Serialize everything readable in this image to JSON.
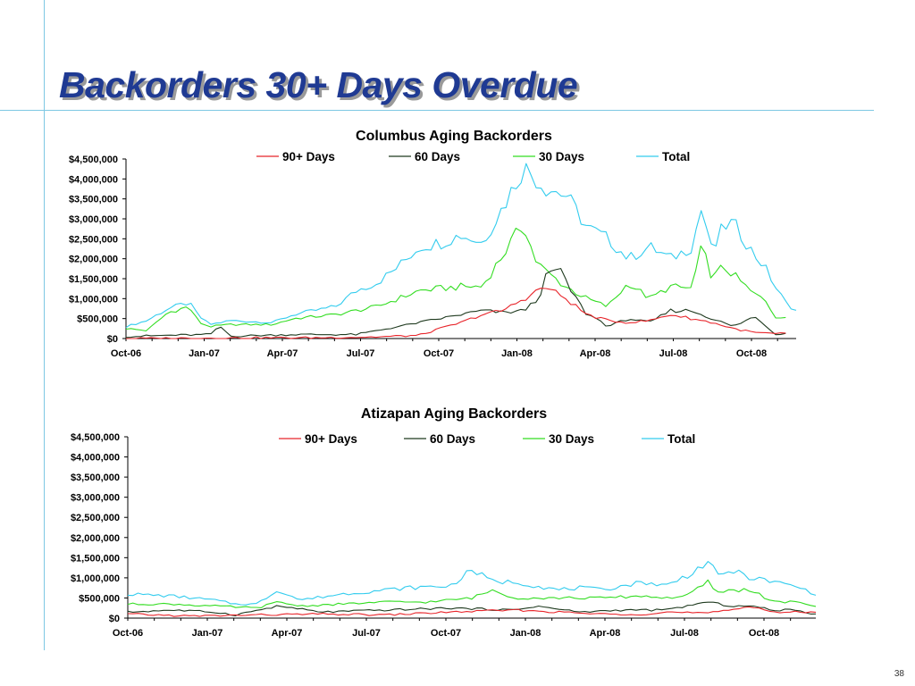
{
  "slide": {
    "title": "Backorders 30+ Days Overdue",
    "page_number": "38"
  },
  "colors": {
    "90+ Days": "#e8252b",
    "60 Days": "#1f3a1f",
    "30 Days": "#33dd22",
    "Total": "#33ccee"
  },
  "chart_data": [
    {
      "type": "line",
      "title": "Columbus Aging Backorders",
      "xlabel": "",
      "ylabel": "",
      "ylim": [
        0,
        4500000
      ],
      "yticks": [
        "$0",
        "$500,000",
        "$1,000,000",
        "$1,500,000",
        "$2,000,000",
        "$2,500,000",
        "$3,000,000",
        "$3,500,000",
        "$4,000,000",
        "$4,500,000"
      ],
      "xticks": [
        "Oct-06",
        "Jan-07",
        "Apr-07",
        "Jul-07",
        "Oct-07",
        "Jan-08",
        "Apr-08",
        "Jul-08",
        "Oct-08"
      ],
      "legend_position": "top",
      "series": [
        {
          "name": "90+ Days",
          "anchors": [
            [
              0,
              0
            ],
            [
              6,
              20000
            ],
            [
              9,
              20000
            ],
            [
              12,
              40000
            ],
            [
              14,
              80000
            ],
            [
              15,
              250000
            ],
            [
              16,
              400000
            ],
            [
              17,
              600000
            ],
            [
              18,
              700000
            ],
            [
              19,
              1000000
            ],
            [
              20,
              1300000
            ],
            [
              21,
              1000000
            ],
            [
              22,
              600000
            ],
            [
              23,
              450000
            ],
            [
              24,
              400000
            ],
            [
              25,
              450000
            ],
            [
              26,
              600000
            ],
            [
              27,
              500000
            ],
            [
              28,
              400000
            ],
            [
              29,
              250000
            ],
            [
              30,
              150000
            ],
            [
              31,
              120000
            ],
            [
              31.5,
              120000
            ]
          ]
        },
        {
          "name": "60 Days",
          "anchors": [
            [
              0,
              50000
            ],
            [
              2,
              80000
            ],
            [
              4,
              100000
            ],
            [
              4.5,
              300000
            ],
            [
              5,
              60000
            ],
            [
              8,
              100000
            ],
            [
              11,
              100000
            ],
            [
              13,
              300000
            ],
            [
              15,
              500000
            ],
            [
              17,
              700000
            ],
            [
              18,
              650000
            ],
            [
              19,
              700000
            ],
            [
              19.7,
              1000000
            ],
            [
              20,
              1500000
            ],
            [
              20.7,
              1800000
            ],
            [
              21,
              1400000
            ],
            [
              22,
              600000
            ],
            [
              22.5,
              500000
            ],
            [
              23,
              300000
            ],
            [
              24,
              500000
            ],
            [
              25,
              400000
            ],
            [
              26,
              700000
            ],
            [
              27,
              700000
            ],
            [
              28,
              500000
            ],
            [
              29,
              300000
            ],
            [
              30,
              550000
            ],
            [
              30.5,
              350000
            ],
            [
              31,
              100000
            ],
            [
              31.5,
              150000
            ]
          ]
        },
        {
          "name": "30 Days",
          "anchors": [
            [
              0,
              250000
            ],
            [
              1,
              200000
            ],
            [
              2,
              650000
            ],
            [
              3,
              800000
            ],
            [
              3.5,
              400000
            ],
            [
              4,
              300000
            ],
            [
              5,
              350000
            ],
            [
              7,
              350000
            ],
            [
              8,
              500000
            ],
            [
              10,
              600000
            ],
            [
              12,
              800000
            ],
            [
              14,
              1200000
            ],
            [
              16,
              1300000
            ],
            [
              17,
              1300000
            ],
            [
              18,
              2100000
            ],
            [
              19,
              2900000
            ],
            [
              19.5,
              2000000
            ],
            [
              20,
              1700000
            ],
            [
              21,
              1300000
            ],
            [
              22,
              1000000
            ],
            [
              23,
              800000
            ],
            [
              24,
              1400000
            ],
            [
              25,
              1000000
            ],
            [
              26,
              1300000
            ],
            [
              27,
              1250000
            ],
            [
              27.5,
              2300000
            ],
            [
              28,
              1500000
            ],
            [
              28.5,
              1800000
            ],
            [
              29,
              1600000
            ],
            [
              30,
              1100000
            ],
            [
              30.5,
              1000000
            ],
            [
              31,
              550000
            ],
            [
              31.5,
              500000
            ]
          ]
        },
        {
          "name": "Total",
          "anchors": [
            [
              0,
              300000
            ],
            [
              1,
              450000
            ],
            [
              2,
              750000
            ],
            [
              3,
              900000
            ],
            [
              3.5,
              550000
            ],
            [
              4,
              350000
            ],
            [
              5,
              450000
            ],
            [
              7,
              400000
            ],
            [
              8,
              600000
            ],
            [
              10,
              800000
            ],
            [
              11,
              1200000
            ],
            [
              12,
              1400000
            ],
            [
              13,
              1800000
            ],
            [
              14,
              2300000
            ],
            [
              15,
              2400000
            ],
            [
              16,
              2600000
            ],
            [
              17,
              2400000
            ],
            [
              18,
              3300000
            ],
            [
              19,
              4300000
            ],
            [
              20,
              3800000
            ],
            [
              21,
              3600000
            ],
            [
              22,
              2800000
            ],
            [
              23,
              2500000
            ],
            [
              24,
              2000000
            ],
            [
              25,
              2300000
            ],
            [
              26,
              2000000
            ],
            [
              27,
              2300000
            ],
            [
              27.5,
              3300000
            ],
            [
              28,
              2100000
            ],
            [
              28.5,
              2800000
            ],
            [
              29,
              2900000
            ],
            [
              30,
              2100000
            ],
            [
              30.5,
              1800000
            ],
            [
              31,
              1300000
            ],
            [
              31.5,
              900000
            ],
            [
              32,
              700000
            ]
          ]
        }
      ]
    },
    {
      "type": "line",
      "title": "Atizapan Aging Backorders",
      "xlabel": "",
      "ylabel": "",
      "ylim": [
        0,
        4500000
      ],
      "yticks": [
        "$0",
        "$500,000",
        "$1,000,000",
        "$1,500,000",
        "$2,000,000",
        "$2,500,000",
        "$3,000,000",
        "$3,500,000",
        "$4,000,000",
        "$4,500,000"
      ],
      "xticks": [
        "Oct-06",
        "Jan-07",
        "Apr-07",
        "Jul-07",
        "Oct-07",
        "Jan-08",
        "Apr-08",
        "Jul-08",
        "Oct-08"
      ],
      "legend_position": "top",
      "series": [
        {
          "name": "90+ Days",
          "anchors": [
            [
              0,
              100000
            ],
            [
              3,
              50000
            ],
            [
              6,
              80000
            ],
            [
              9,
              100000
            ],
            [
              12,
              80000
            ],
            [
              15,
              150000
            ],
            [
              18,
              200000
            ],
            [
              20,
              150000
            ],
            [
              22,
              100000
            ],
            [
              24,
              100000
            ],
            [
              25,
              150000
            ],
            [
              27,
              120000
            ],
            [
              28,
              200000
            ],
            [
              29,
              300000
            ],
            [
              30,
              150000
            ],
            [
              31,
              150000
            ],
            [
              32,
              130000
            ]
          ]
        },
        {
          "name": "60 Days",
          "anchors": [
            [
              0,
              150000
            ],
            [
              2,
              200000
            ],
            [
              4,
              150000
            ],
            [
              5,
              80000
            ],
            [
              7,
              300000
            ],
            [
              9,
              150000
            ],
            [
              12,
              200000
            ],
            [
              15,
              250000
            ],
            [
              18,
              200000
            ],
            [
              19,
              300000
            ],
            [
              21,
              150000
            ],
            [
              23,
              200000
            ],
            [
              25,
              200000
            ],
            [
              26,
              300000
            ],
            [
              27,
              400000
            ],
            [
              28,
              300000
            ],
            [
              29,
              300000
            ],
            [
              30,
              200000
            ],
            [
              31,
              200000
            ],
            [
              32,
              100000
            ]
          ]
        },
        {
          "name": "30 Days",
          "anchors": [
            [
              0,
              350000
            ],
            [
              2,
              350000
            ],
            [
              4,
              300000
            ],
            [
              6,
              250000
            ],
            [
              7,
              400000
            ],
            [
              8,
              300000
            ],
            [
              10,
              350000
            ],
            [
              12,
              400000
            ],
            [
              14,
              400000
            ],
            [
              16,
              500000
            ],
            [
              17,
              700000
            ],
            [
              18,
              500000
            ],
            [
              20,
              500000
            ],
            [
              22,
              500000
            ],
            [
              24,
              550000
            ],
            [
              25,
              500000
            ],
            [
              26,
              550000
            ],
            [
              27,
              900000
            ],
            [
              27.5,
              600000
            ],
            [
              28,
              700000
            ],
            [
              29,
              700000
            ],
            [
              30,
              400000
            ],
            [
              31,
              400000
            ],
            [
              32,
              300000
            ]
          ]
        },
        {
          "name": "Total",
          "anchors": [
            [
              0,
              600000
            ],
            [
              2,
              550000
            ],
            [
              4,
              450000
            ],
            [
              5,
              350000
            ],
            [
              6,
              350000
            ],
            [
              7,
              700000
            ],
            [
              8,
              450000
            ],
            [
              10,
              600000
            ],
            [
              12,
              700000
            ],
            [
              13,
              750000
            ],
            [
              15,
              800000
            ],
            [
              16,
              1200000
            ],
            [
              17,
              900000
            ],
            [
              18,
              900000
            ],
            [
              20,
              700000
            ],
            [
              21,
              750000
            ],
            [
              22,
              700000
            ],
            [
              23,
              800000
            ],
            [
              24,
              900000
            ],
            [
              25,
              800000
            ],
            [
              26,
              1050000
            ],
            [
              27,
              1400000
            ],
            [
              27.5,
              1000000
            ],
            [
              28,
              1200000
            ],
            [
              29,
              1000000
            ],
            [
              30,
              900000
            ],
            [
              31,
              800000
            ],
            [
              32,
              600000
            ]
          ]
        }
      ]
    }
  ]
}
